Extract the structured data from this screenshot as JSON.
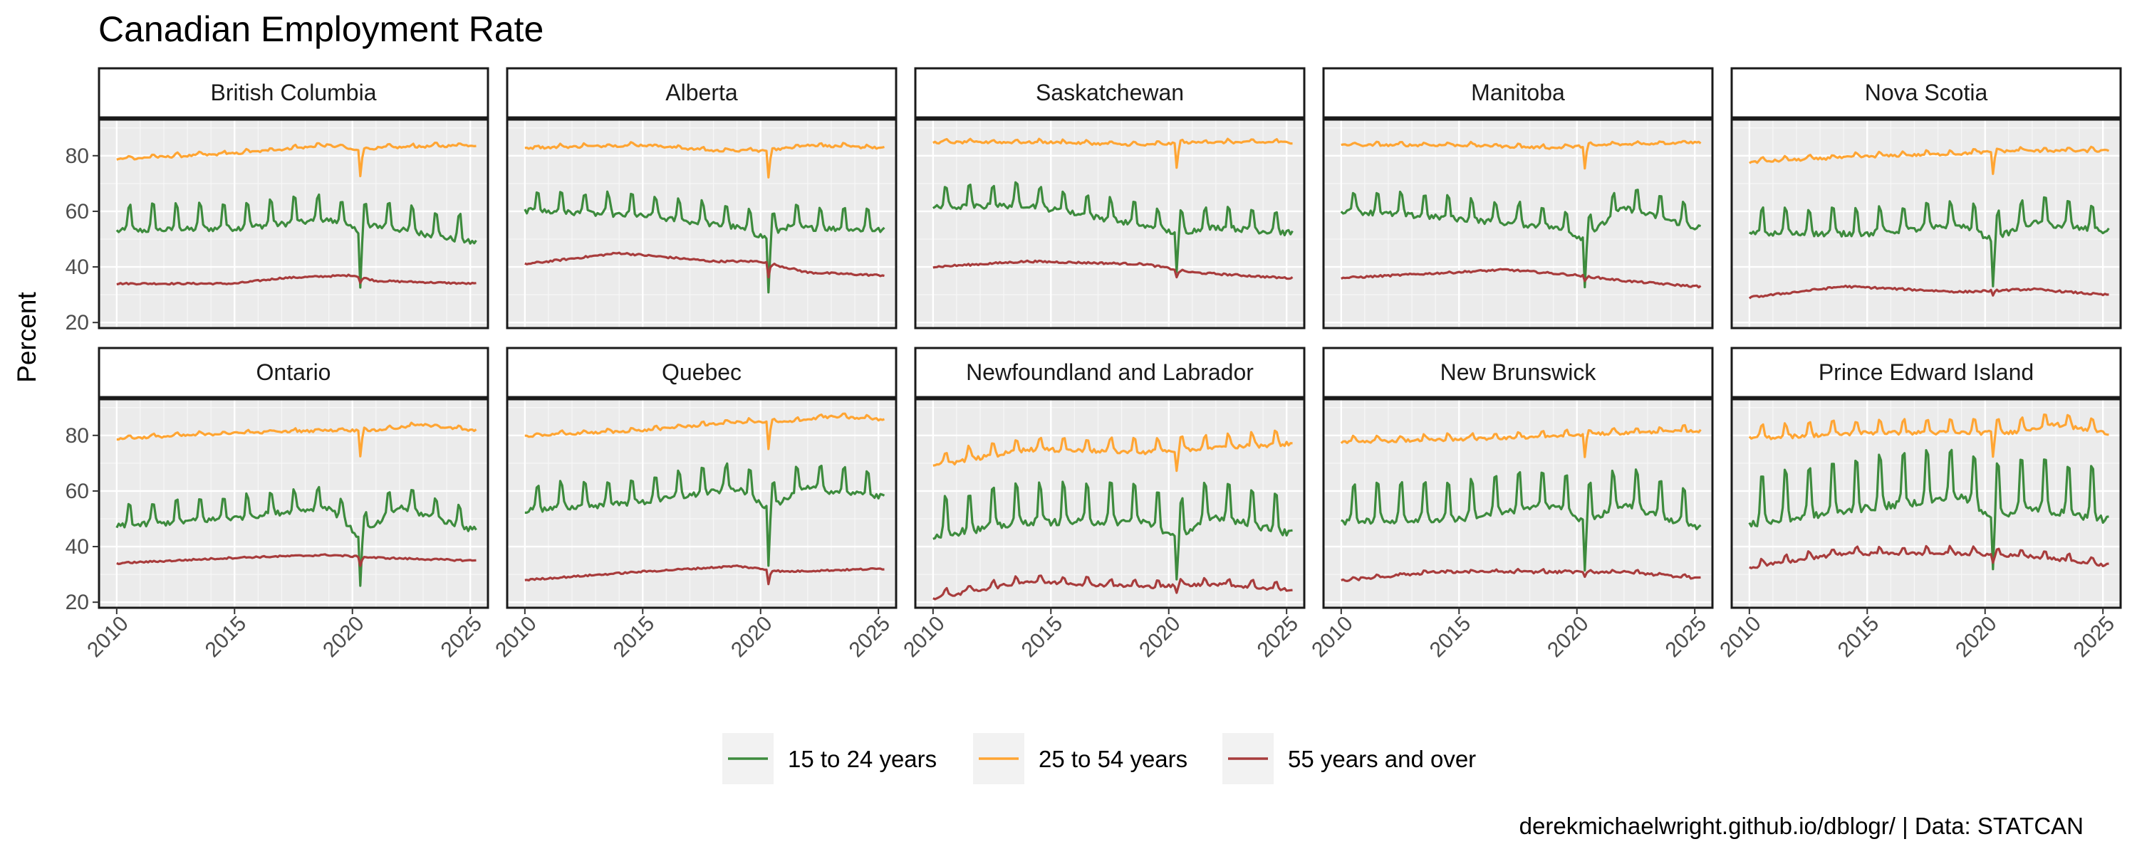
{
  "chart_data": {
    "type": "line",
    "title": "Canadian Employment Rate",
    "ylabel": "Percent",
    "xlabel": "",
    "caption": "derekmichaelwright.github.io/dblogr/ | Data: STATCAN",
    "ylim": [
      18,
      93
    ],
    "xlim": [
      2009.25,
      2025.75
    ],
    "y_ticks": [
      20,
      40,
      60,
      80
    ],
    "x_ticks": [
      2010,
      2015,
      2020,
      2025
    ],
    "grid": true,
    "legend_position": "bottom",
    "series_meta": [
      {
        "name": "15 to 24 years",
        "color": "#3d8b3d"
      },
      {
        "name": "25 to 54 years",
        "color": "#ffa533"
      },
      {
        "name": "55 years and over",
        "color": "#a83c3c"
      }
    ],
    "x_start": 2010,
    "x_end": 2025.25,
    "panels": [
      {
        "name": "British Columbia",
        "series": [
          {
            "base": 55,
            "amp": 6,
            "noise": 2,
            "dip": 20,
            "trend": [
              [
                2010,
                55
              ],
              [
                2015,
                56
              ],
              [
                2019,
                59
              ],
              [
                2020.3,
                55
              ],
              [
                2021,
                57
              ],
              [
                2025,
                51
              ]
            ]
          },
          {
            "base": 80,
            "amp": 0.7,
            "noise": 0.8,
            "dip": 9,
            "trend": [
              [
                2010,
                79
              ],
              [
                2015,
                81
              ],
              [
                2019,
                84
              ],
              [
                2020.3,
                82
              ],
              [
                2021,
                83
              ],
              [
                2025,
                84
              ]
            ]
          },
          {
            "base": 34,
            "amp": 0,
            "noise": 0.6,
            "dip": 2,
            "trend": [
              [
                2010,
                34
              ],
              [
                2015,
                34
              ],
              [
                2017,
                36
              ],
              [
                2020,
                37
              ],
              [
                2021,
                35
              ],
              [
                2025,
                34
              ]
            ]
          }
        ]
      },
      {
        "name": "Alberta",
        "series": [
          {
            "base": 61,
            "amp": 5,
            "noise": 2,
            "dip": 20,
            "trend": [
              [
                2010,
                62
              ],
              [
                2015,
                60
              ],
              [
                2019,
                56
              ],
              [
                2020.3,
                52
              ],
              [
                2021,
                56
              ],
              [
                2025,
                55
              ]
            ]
          },
          {
            "base": 83,
            "amp": 0.6,
            "noise": 0.8,
            "dip": 10,
            "trend": [
              [
                2010,
                83
              ],
              [
                2015,
                84
              ],
              [
                2018,
                82
              ],
              [
                2020.3,
                82
              ],
              [
                2022,
                84
              ],
              [
                2025,
                83
              ]
            ]
          },
          {
            "base": 42,
            "amp": 0,
            "noise": 0.7,
            "dip": 5,
            "trend": [
              [
                2010,
                41
              ],
              [
                2014,
                45
              ],
              [
                2018,
                42
              ],
              [
                2020,
                42
              ],
              [
                2022,
                38
              ],
              [
                2025,
                37
              ]
            ]
          }
        ]
      },
      {
        "name": "Saskatchewan",
        "series": [
          {
            "base": 62,
            "amp": 5,
            "noise": 2,
            "dip": 15,
            "trend": [
              [
                2010,
                63
              ],
              [
                2014,
                64
              ],
              [
                2018,
                58
              ],
              [
                2020.3,
                54
              ],
              [
                2022,
                56
              ],
              [
                2025,
                54
              ]
            ]
          },
          {
            "base": 85,
            "amp": 0.6,
            "noise": 0.8,
            "dip": 9,
            "trend": [
              [
                2010,
                85
              ],
              [
                2015,
                85
              ],
              [
                2019,
                84
              ],
              [
                2021,
                85
              ],
              [
                2025,
                85
              ]
            ]
          },
          {
            "base": 41,
            "amp": 0,
            "noise": 0.7,
            "dip": 3,
            "trend": [
              [
                2010,
                40
              ],
              [
                2014,
                42
              ],
              [
                2019,
                41
              ],
              [
                2021,
                38
              ],
              [
                2025,
                36
              ]
            ]
          }
        ]
      },
      {
        "name": "Manitoba",
        "series": [
          {
            "base": 60,
            "amp": 5,
            "noise": 2,
            "dip": 18,
            "trend": [
              [
                2010,
                62
              ],
              [
                2015,
                59
              ],
              [
                2019,
                56
              ],
              [
                2020.3,
                52
              ],
              [
                2022,
                63
              ],
              [
                2025,
                56
              ]
            ]
          },
          {
            "base": 84,
            "amp": 0.6,
            "noise": 0.8,
            "dip": 8,
            "trend": [
              [
                2010,
                84
              ],
              [
                2015,
                84
              ],
              [
                2019,
                83
              ],
              [
                2021,
                84
              ],
              [
                2025,
                85
              ]
            ]
          },
          {
            "base": 37,
            "amp": 0,
            "noise": 0.7,
            "dip": 2,
            "trend": [
              [
                2010,
                36
              ],
              [
                2017,
                39
              ],
              [
                2020,
                37
              ],
              [
                2022,
                35
              ],
              [
                2025,
                33
              ]
            ]
          }
        ]
      },
      {
        "name": "Nova Scotia",
        "series": [
          {
            "base": 56,
            "amp": 6,
            "noise": 2,
            "dip": 18,
            "trend": [
              [
                2010,
                54
              ],
              [
                2015,
                54
              ],
              [
                2019,
                57
              ],
              [
                2020.3,
                52
              ],
              [
                2022,
                58
              ],
              [
                2025,
                55
              ]
            ]
          },
          {
            "base": 80,
            "amp": 0.8,
            "noise": 0.9,
            "dip": 8,
            "trend": [
              [
                2010,
                78
              ],
              [
                2015,
                80
              ],
              [
                2019,
                81
              ],
              [
                2021,
                82
              ],
              [
                2025,
                82
              ]
            ]
          },
          {
            "base": 31,
            "amp": 0,
            "noise": 0.7,
            "dip": 2,
            "trend": [
              [
                2010,
                29
              ],
              [
                2014,
                33
              ],
              [
                2019,
                31
              ],
              [
                2022,
                32
              ],
              [
                2025,
                30
              ]
            ]
          }
        ]
      },
      {
        "name": "Ontario",
        "series": [
          {
            "base": 52,
            "amp": 5,
            "noise": 2,
            "dip": 18,
            "trend": [
              [
                2010,
                49
              ],
              [
                2015,
                52
              ],
              [
                2019,
                56
              ],
              [
                2020.3,
                45
              ],
              [
                2022,
                56
              ],
              [
                2025,
                48
              ]
            ]
          },
          {
            "base": 80,
            "amp": 0.6,
            "noise": 0.8,
            "dip": 9,
            "trend": [
              [
                2010,
                79
              ],
              [
                2015,
                81
              ],
              [
                2019,
                82
              ],
              [
                2021,
                82
              ],
              [
                2023,
                84
              ],
              [
                2025,
                82
              ]
            ]
          },
          {
            "base": 35,
            "amp": 0,
            "noise": 0.6,
            "dip": 3,
            "trend": [
              [
                2010,
                34
              ],
              [
                2015,
                36
              ],
              [
                2019,
                37
              ],
              [
                2021,
                36
              ],
              [
                2025,
                35
              ]
            ]
          }
        ]
      },
      {
        "name": "Quebec",
        "series": [
          {
            "base": 58,
            "amp": 6,
            "noise": 2,
            "dip": 20,
            "trend": [
              [
                2010,
                55
              ],
              [
                2015,
                58
              ],
              [
                2019,
                63
              ],
              [
                2020.3,
                56
              ],
              [
                2022,
                63
              ],
              [
                2025,
                60
              ]
            ]
          },
          {
            "base": 82,
            "amp": 0.7,
            "noise": 0.8,
            "dip": 10,
            "trend": [
              [
                2010,
                80
              ],
              [
                2015,
                82
              ],
              [
                2019,
                85
              ],
              [
                2021,
                85
              ],
              [
                2023,
                87
              ],
              [
                2025,
                86
              ]
            ]
          },
          {
            "base": 30,
            "amp": 0,
            "noise": 0.6,
            "dip": 5,
            "trend": [
              [
                2010,
                28
              ],
              [
                2015,
                31
              ],
              [
                2019,
                33
              ],
              [
                2021,
                31
              ],
              [
                2025,
                32
              ]
            ]
          }
        ]
      },
      {
        "name": "Newfoundland and Labrador",
        "series": [
          {
            "base": 52,
            "amp": 9,
            "noise": 2.5,
            "dip": 16,
            "trend": [
              [
                2010,
                47
              ],
              [
                2014,
                52
              ],
              [
                2019,
                52
              ],
              [
                2020.3,
                46
              ],
              [
                2022,
                54
              ],
              [
                2025,
                48
              ]
            ]
          },
          {
            "base": 74,
            "amp": 3,
            "noise": 1.5,
            "dip": 8,
            "trend": [
              [
                2010,
                70
              ],
              [
                2014,
                76
              ],
              [
                2019,
                75
              ],
              [
                2021,
                76
              ],
              [
                2025,
                78
              ]
            ]
          },
          {
            "base": 26,
            "amp": 1.5,
            "noise": 1.2,
            "dip": 3,
            "trend": [
              [
                2010,
                22
              ],
              [
                2014,
                28
              ],
              [
                2019,
                26
              ],
              [
                2022,
                27
              ],
              [
                2025,
                25
              ]
            ]
          }
        ]
      },
      {
        "name": "New Brunswick",
        "series": [
          {
            "base": 55,
            "amp": 9,
            "noise": 2,
            "dip": 18,
            "trend": [
              [
                2010,
                52
              ],
              [
                2015,
                53
              ],
              [
                2019,
                58
              ],
              [
                2020.3,
                52
              ],
              [
                2022,
                58
              ],
              [
                2025,
                50
              ]
            ]
          },
          {
            "base": 79,
            "amp": 1.2,
            "noise": 1,
            "dip": 8,
            "trend": [
              [
                2010,
                78
              ],
              [
                2015,
                79
              ],
              [
                2019,
                80
              ],
              [
                2021,
                81
              ],
              [
                2025,
                82
              ]
            ]
          },
          {
            "base": 31,
            "amp": 0.5,
            "noise": 0.9,
            "dip": 2,
            "trend": [
              [
                2010,
                28
              ],
              [
                2014,
                31
              ],
              [
                2019,
                31
              ],
              [
                2022,
                31
              ],
              [
                2025,
                29
              ]
            ]
          }
        ]
      },
      {
        "name": "Prince Edward Island",
        "series": [
          {
            "base": 58,
            "amp": 12,
            "noise": 2.5,
            "dip": 18,
            "trend": [
              [
                2010,
                52
              ],
              [
                2015,
                58
              ],
              [
                2019,
                62
              ],
              [
                2020.3,
                55
              ],
              [
                2022,
                58
              ],
              [
                2025,
                54
              ]
            ]
          },
          {
            "base": 81,
            "amp": 3,
            "noise": 1.4,
            "dip": 8,
            "trend": [
              [
                2010,
                80
              ],
              [
                2015,
                82
              ],
              [
                2019,
                82
              ],
              [
                2021,
                82
              ],
              [
                2023,
                85
              ],
              [
                2025,
                82
              ]
            ]
          },
          {
            "base": 37,
            "amp": 1.5,
            "noise": 1.1,
            "dip": 3,
            "trend": [
              [
                2010,
                33
              ],
              [
                2014,
                38
              ],
              [
                2019,
                38
              ],
              [
                2022,
                37
              ],
              [
                2025,
                34
              ]
            ]
          }
        ]
      }
    ]
  }
}
